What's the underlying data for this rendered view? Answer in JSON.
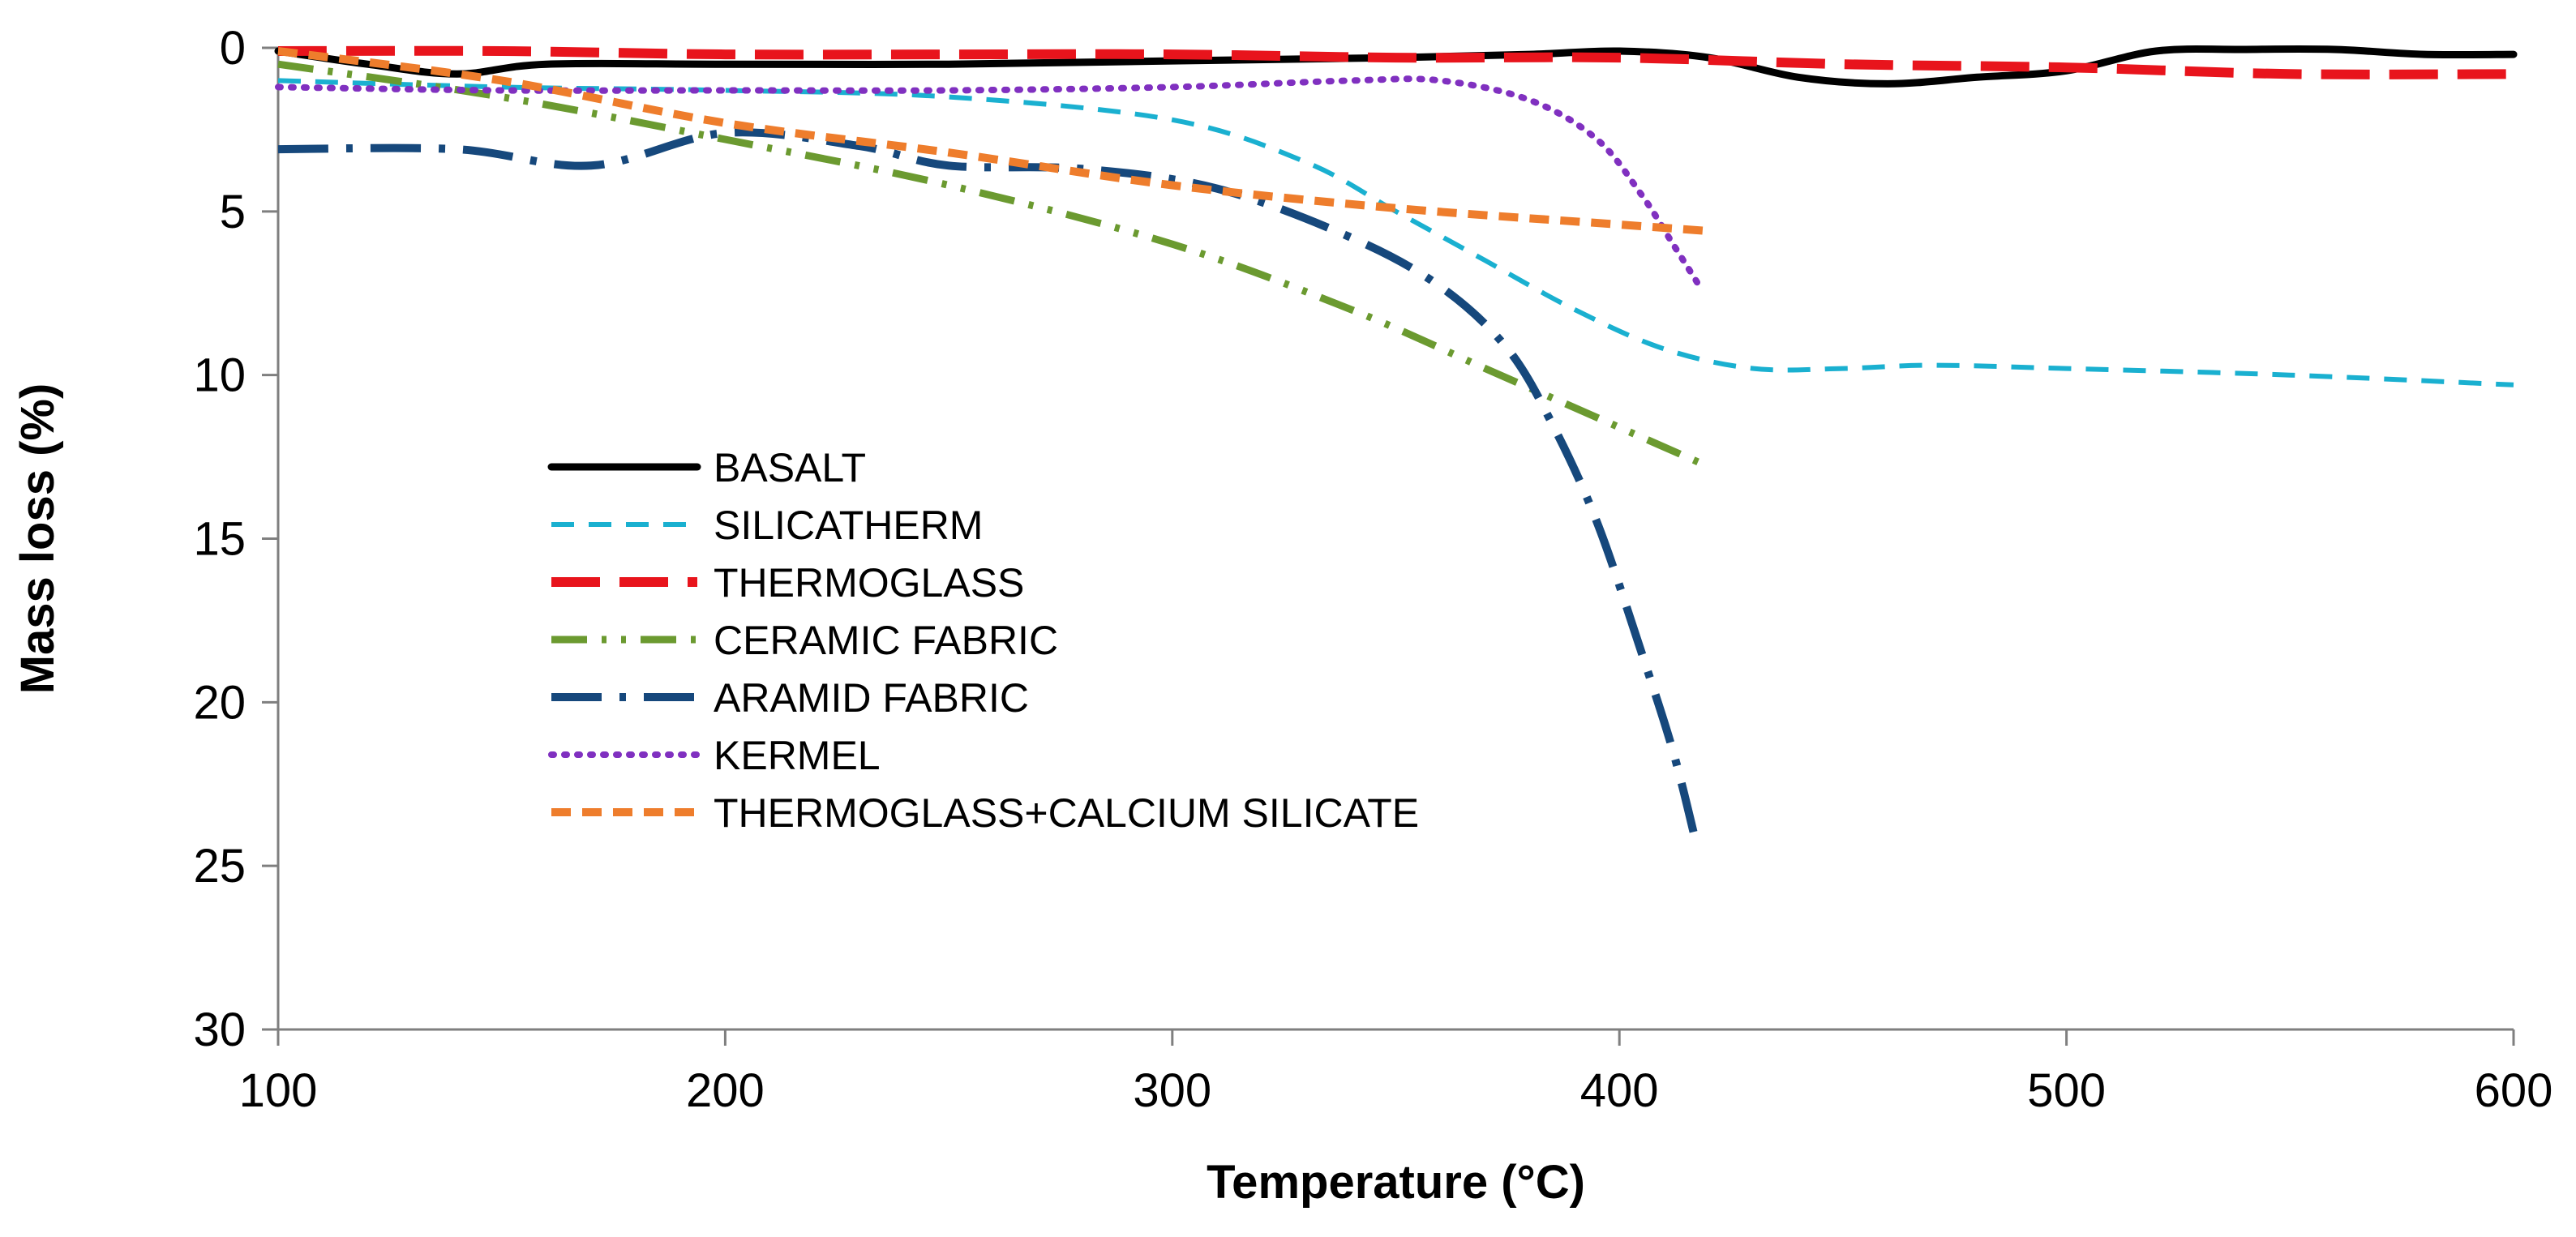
{
  "chart_data": {
    "type": "line",
    "title": "",
    "xlabel": "Temperature (°C)",
    "ylabel": "Mass loss (%)",
    "xlim": [
      100,
      600
    ],
    "ylim": [
      0,
      30
    ],
    "y_inverted": true,
    "xticks": [
      100,
      200,
      300,
      400,
      500,
      600
    ],
    "yticks": [
      0,
      5,
      10,
      15,
      20,
      25,
      30
    ],
    "grid": false,
    "legend_position": "left-center inside plot",
    "series": [
      {
        "name": "BASALT",
        "color": "#000000",
        "style": "solid",
        "x": [
          100,
          120,
          140,
          160,
          200,
          250,
          300,
          350,
          380,
          400,
          420,
          440,
          460,
          480,
          500,
          520,
          540,
          560,
          580,
          600
        ],
        "y": [
          0.1,
          0.5,
          0.8,
          0.5,
          0.5,
          0.5,
          0.4,
          0.3,
          0.2,
          0.1,
          0.3,
          0.9,
          1.1,
          0.9,
          0.7,
          0.1,
          0.05,
          0.05,
          0.2,
          0.2
        ]
      },
      {
        "name": "SILICATHERM",
        "color": "#1ab0d0",
        "style": "dashed",
        "x": [
          100,
          150,
          200,
          250,
          300,
          330,
          350,
          370,
          390,
          410,
          430,
          450,
          470,
          500,
          550,
          600
        ],
        "y": [
          1.0,
          1.2,
          1.3,
          1.5,
          2.2,
          3.5,
          5.0,
          6.5,
          8.0,
          9.2,
          9.8,
          9.8,
          9.7,
          9.8,
          10.0,
          10.3
        ]
      },
      {
        "name": "THERMOGLASS",
        "color": "#e8141c",
        "style": "longdash",
        "x": [
          100,
          150,
          200,
          250,
          300,
          350,
          400,
          450,
          500,
          550,
          600
        ],
        "y": [
          0.1,
          0.1,
          0.2,
          0.2,
          0.2,
          0.3,
          0.3,
          0.5,
          0.6,
          0.8,
          0.8
        ]
      },
      {
        "name": "CERAMIC FABRIC",
        "color": "#6b9a30",
        "style": "dashdotdot",
        "x": [
          100,
          150,
          200,
          250,
          300,
          340,
          370,
          390,
          410,
          420
        ],
        "y": [
          0.5,
          1.5,
          2.8,
          4.2,
          6.0,
          8.0,
          9.8,
          11.0,
          12.2,
          12.8
        ]
      },
      {
        "name": "ARAMID FABRIC",
        "color": "#16487c",
        "style": "dashdot",
        "x": [
          100,
          140,
          170,
          200,
          230,
          250,
          280,
          310,
          340,
          360,
          375,
          385,
          395,
          405,
          412,
          417
        ],
        "y": [
          3.1,
          3.1,
          3.6,
          2.6,
          3.0,
          3.6,
          3.7,
          4.3,
          5.8,
          7.3,
          9.2,
          11.5,
          14.5,
          18.5,
          21.5,
          24.2
        ]
      },
      {
        "name": "KERMEL",
        "color": "#8030c0",
        "style": "dotted",
        "x": [
          100,
          150,
          200,
          250,
          300,
          340,
          360,
          380,
          395,
          405,
          412,
          418
        ],
        "y": [
          1.2,
          1.3,
          1.3,
          1.3,
          1.2,
          1.0,
          1.0,
          1.6,
          2.8,
          4.5,
          6.0,
          7.3
        ]
      },
      {
        "name": "THERMOGLASS+CALCIUM SILICATE",
        "color": "#ee7d2c",
        "style": "shortdash",
        "x": [
          100,
          150,
          200,
          250,
          300,
          350,
          400,
          420
        ],
        "y": [
          0.1,
          1.0,
          2.3,
          3.2,
          4.2,
          4.9,
          5.4,
          5.6
        ]
      }
    ]
  }
}
